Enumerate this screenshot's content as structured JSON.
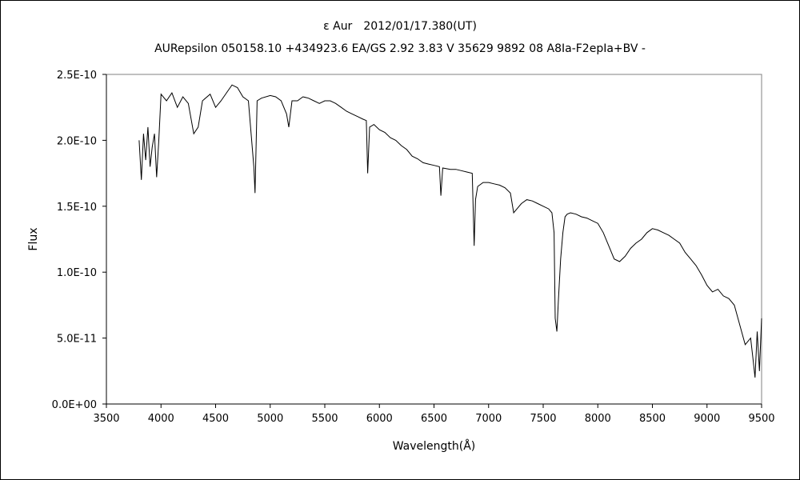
{
  "chart_data": {
    "type": "line",
    "title": "ε Aur　2012/01/17.380(UT)",
    "subtitle": "AURepsilon 050158.10 +434923.6 EA/GS 2.92 3.83 V 35629 9892 08 A8Ia-F2epIa+BV -",
    "xlabel": "Wavelength(Å)",
    "ylabel": "Flux",
    "xlim": [
      3500,
      9500
    ],
    "ylim": [
      0,
      2.5e-10
    ],
    "x_ticks": [
      3500,
      4000,
      4500,
      5000,
      5500,
      6000,
      6500,
      7000,
      7500,
      8000,
      8500,
      9000,
      9500
    ],
    "x_tick_labels": [
      "3500",
      "4000",
      "4500",
      "5000",
      "5500",
      "6000",
      "6500",
      "7000",
      "7500",
      "8000",
      "8500",
      "9000",
      "9500"
    ],
    "y_ticks": [
      0,
      5e-11,
      1e-10,
      1.5e-10,
      2e-10,
      2.5e-10
    ],
    "y_tick_labels": [
      "0.0E+00",
      "5.0E-11",
      "1.0E-10",
      "1.5E-10",
      "2.0E-10",
      "2.5E-10"
    ],
    "grid": false,
    "line_color": "#000000",
    "series": [
      {
        "x": [
          3800,
          3820,
          3840,
          3860,
          3880,
          3900,
          3920,
          3940,
          3960,
          3980,
          4000,
          4050,
          4100,
          4150,
          4200,
          4250,
          4300,
          4340,
          4380,
          4450,
          4500,
          4550,
          4600,
          4650,
          4700,
          4750,
          4800,
          4850,
          4861,
          4880,
          4920,
          5000,
          5050,
          5100,
          5150,
          5170,
          5200,
          5250,
          5300,
          5350,
          5400,
          5450,
          5500,
          5550,
          5600,
          5650,
          5700,
          5750,
          5800,
          5850,
          5880,
          5893,
          5910,
          5950,
          6000,
          6050,
          6100,
          6150,
          6200,
          6250,
          6300,
          6350,
          6400,
          6450,
          6500,
          6550,
          6563,
          6580,
          6650,
          6700,
          6750,
          6800,
          6850,
          6868,
          6880,
          6900,
          6950,
          7000,
          7050,
          7100,
          7150,
          7200,
          7230,
          7260,
          7300,
          7350,
          7400,
          7450,
          7500,
          7550,
          7580,
          7600,
          7610,
          7625,
          7640,
          7660,
          7680,
          7700,
          7720,
          7750,
          7800,
          7850,
          7900,
          7950,
          8000,
          8050,
          8100,
          8150,
          8200,
          8250,
          8300,
          8350,
          8400,
          8450,
          8500,
          8550,
          8600,
          8650,
          8700,
          8750,
          8800,
          8850,
          8900,
          8950,
          9000,
          9050,
          9100,
          9150,
          9200,
          9250,
          9300,
          9350,
          9400,
          9420,
          9440,
          9460,
          9480,
          9500
        ],
        "y": [
          2e-10,
          1.7e-10,
          2.05e-10,
          1.85e-10,
          2.1e-10,
          1.8e-10,
          1.95e-10,
          2.05e-10,
          1.72e-10,
          2e-10,
          2.35e-10,
          2.3e-10,
          2.36e-10,
          2.25e-10,
          2.33e-10,
          2.28e-10,
          2.05e-10,
          2.1e-10,
          2.3e-10,
          2.35e-10,
          2.25e-10,
          2.3e-10,
          2.36e-10,
          2.42e-10,
          2.4e-10,
          2.33e-10,
          2.3e-10,
          1.8e-10,
          1.6e-10,
          2.3e-10,
          2.32e-10,
          2.34e-10,
          2.33e-10,
          2.3e-10,
          2.2e-10,
          2.1e-10,
          2.3e-10,
          2.3e-10,
          2.33e-10,
          2.32e-10,
          2.3e-10,
          2.28e-10,
          2.3e-10,
          2.3e-10,
          2.28e-10,
          2.25e-10,
          2.22e-10,
          2.2e-10,
          2.18e-10,
          2.16e-10,
          2.15e-10,
          1.75e-10,
          2.1e-10,
          2.12e-10,
          2.08e-10,
          2.06e-10,
          2.02e-10,
          2e-10,
          1.96e-10,
          1.93e-10,
          1.88e-10,
          1.86e-10,
          1.83e-10,
          1.82e-10,
          1.81e-10,
          1.8e-10,
          1.58e-10,
          1.79e-10,
          1.78e-10,
          1.78e-10,
          1.77e-10,
          1.76e-10,
          1.75e-10,
          1.2e-10,
          1.55e-10,
          1.65e-10,
          1.68e-10,
          1.68e-10,
          1.67e-10,
          1.66e-10,
          1.64e-10,
          1.6e-10,
          1.45e-10,
          1.48e-10,
          1.52e-10,
          1.55e-10,
          1.54e-10,
          1.52e-10,
          1.5e-10,
          1.48e-10,
          1.45e-10,
          1.3e-10,
          6.5e-11,
          5.5e-11,
          8e-11,
          1.1e-10,
          1.3e-10,
          1.42e-10,
          1.44e-10,
          1.45e-10,
          1.44e-10,
          1.42e-10,
          1.41e-10,
          1.39e-10,
          1.37e-10,
          1.3e-10,
          1.2e-10,
          1.1e-10,
          1.08e-10,
          1.12e-10,
          1.18e-10,
          1.22e-10,
          1.25e-10,
          1.3e-10,
          1.33e-10,
          1.32e-10,
          1.3e-10,
          1.28e-10,
          1.25e-10,
          1.22e-10,
          1.15e-10,
          1.1e-10,
          1.05e-10,
          9.8e-11,
          9e-11,
          8.5e-11,
          8.7e-11,
          8.2e-11,
          8e-11,
          7.5e-11,
          6e-11,
          4.5e-11,
          5e-11,
          3.5e-11,
          2e-11,
          5.5e-11,
          2.5e-11,
          6.5e-11
        ]
      }
    ]
  }
}
